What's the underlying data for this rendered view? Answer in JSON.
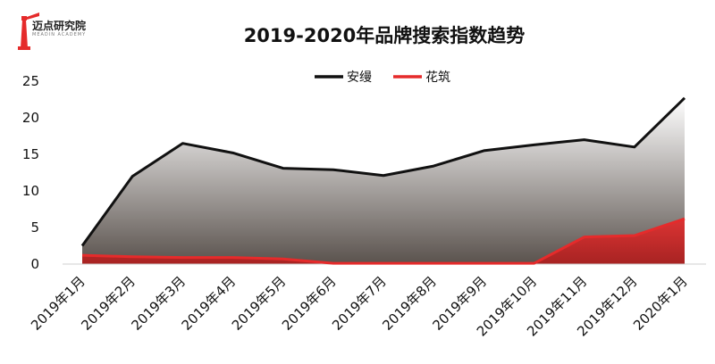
{
  "logo": {
    "text": "迈点研究院",
    "subtext": "MEADIN ACADEMY",
    "icon": "lighthouse-icon",
    "color": "#e52b2b"
  },
  "chart_data": {
    "type": "area",
    "title": "2019-2020年品牌搜索指数趋势",
    "xlabel": "",
    "ylabel": "",
    "categories": [
      "2019年1月",
      "2019年2月",
      "2019年3月",
      "2019年4月",
      "2019年5月",
      "2019年6月",
      "2019年7月",
      "2019年8月",
      "2019年9月",
      "2019年10月",
      "2019年11月",
      "2019年12月",
      "2020年1月"
    ],
    "yticks": [
      0,
      5,
      10,
      15,
      20,
      25
    ],
    "ylim": [
      0,
      25
    ],
    "legend": "top-center",
    "grid": false,
    "series": [
      {
        "name": "安缦",
        "values": [
          2.5,
          12.0,
          16.5,
          15.2,
          13.1,
          12.9,
          12.1,
          13.4,
          15.5,
          16.3,
          17.0,
          16.0,
          22.7
        ],
        "color": "#111111"
      },
      {
        "name": "花筑",
        "values": [
          1.2,
          1.0,
          0.9,
          0.9,
          0.7,
          0.1,
          0.1,
          0.1,
          0.1,
          0.1,
          3.7,
          3.9,
          6.2
        ],
        "color": "#e52b2b"
      }
    ]
  }
}
